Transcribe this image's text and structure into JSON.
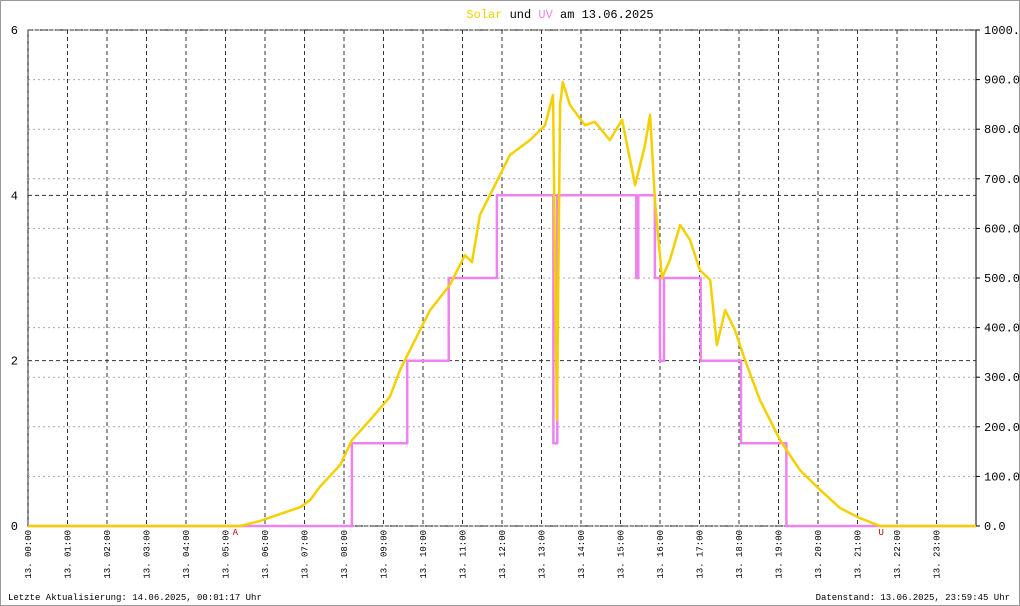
{
  "chart_data": {
    "type": "line",
    "title_connector": "und",
    "title_suffix": "am 13.06.2025",
    "xlim": [
      0,
      24
    ],
    "ylim": [
      0,
      6
    ],
    "y2lim": [
      0,
      1000
    ],
    "xticks": [
      {
        "value": 0,
        "label": "13. 00:00"
      },
      {
        "value": 1,
        "label": "13. 01:00"
      },
      {
        "value": 2,
        "label": "13. 02:00"
      },
      {
        "value": 3,
        "label": "13. 03:00"
      },
      {
        "value": 4,
        "label": "13. 04:00"
      },
      {
        "value": 5,
        "label": "13. 05:00"
      },
      {
        "value": 6,
        "label": "13. 06:00"
      },
      {
        "value": 7,
        "label": "13. 07:00"
      },
      {
        "value": 8,
        "label": "13. 08:00"
      },
      {
        "value": 9,
        "label": "13. 09:00"
      },
      {
        "value": 10,
        "label": "13. 10:00"
      },
      {
        "value": 11,
        "label": "13. 11:00"
      },
      {
        "value": 12,
        "label": "13. 12:00"
      },
      {
        "value": 13,
        "label": "13. 13:00"
      },
      {
        "value": 14,
        "label": "13. 14:00"
      },
      {
        "value": 15,
        "label": "13. 15:00"
      },
      {
        "value": 16,
        "label": "13. 16:00"
      },
      {
        "value": 17,
        "label": "13. 17:00"
      },
      {
        "value": 18,
        "label": "13. 18:00"
      },
      {
        "value": 19,
        "label": "13. 19:00"
      },
      {
        "value": 20,
        "label": "13. 20:00"
      },
      {
        "value": 21,
        "label": "13. 21:00"
      },
      {
        "value": 22,
        "label": "13. 22:00"
      },
      {
        "value": 23,
        "label": "13. 23:00"
      }
    ],
    "yticks": [
      0,
      2,
      4,
      6
    ],
    "y2ticks": [
      {
        "value": 0,
        "label": "0.0"
      },
      {
        "value": 100,
        "label": "100.0"
      },
      {
        "value": 200,
        "label": "200.0"
      },
      {
        "value": 300,
        "label": "300.0"
      },
      {
        "value": 400,
        "label": "400.0"
      },
      {
        "value": 500,
        "label": "500.0"
      },
      {
        "value": 600,
        "label": "600.0"
      },
      {
        "value": 700,
        "label": "700.0"
      },
      {
        "value": 800,
        "label": "800.0"
      },
      {
        "value": 900,
        "label": "900.0"
      },
      {
        "value": 1000,
        "label": "1000.0"
      }
    ],
    "grid": true,
    "series": [
      {
        "name": "Solar",
        "color": "#f5d000",
        "axis": "y2",
        "x": [
          0,
          5.37,
          5.87,
          6.38,
          6.89,
          7.14,
          7.39,
          7.9,
          8.2,
          8.66,
          9.16,
          9.42,
          9.67,
          10.18,
          10.68,
          11.06,
          11.24,
          11.44,
          11.82,
          12.2,
          12.71,
          13.09,
          13.29,
          13.39,
          13.47,
          13.54,
          13.72,
          14.1,
          14.35,
          14.73,
          15.04,
          15.37,
          15.62,
          15.75,
          15.87,
          16.05,
          16.25,
          16.51,
          16.76,
          17.01,
          17.27,
          17.44,
          17.65,
          17.9,
          18.15,
          18.53,
          19.04,
          19.54,
          20.05,
          20.56,
          21.06,
          21.44,
          21.57,
          24
        ],
        "values": [
          0,
          0,
          10,
          24,
          38,
          52,
          79,
          123,
          173,
          214,
          260,
          315,
          355,
          435,
          486,
          546,
          532,
          627,
          687,
          748,
          778,
          808,
          869,
          214,
          849,
          895,
          849,
          808,
          815,
          778,
          819,
          687,
          768,
          829,
          657,
          500,
          536,
          607,
          577,
          516,
          496,
          365,
          435,
          395,
          335,
          254,
          173,
          113,
          73,
          36,
          16,
          4,
          0,
          0
        ]
      },
      {
        "name": "UV",
        "color": "#ee82ee",
        "x": [
          0,
          8.2,
          8.2,
          9.6,
          9.6,
          10.65,
          10.65,
          11.87,
          11.87,
          13.3,
          13.3,
          13.4,
          13.4,
          15.4,
          15.4,
          15.45,
          15.45,
          15.87,
          15.87,
          16.0,
          16.0,
          16.1,
          16.1,
          17.03,
          17.03,
          18.05,
          18.05,
          19.2,
          19.2,
          24
        ],
        "values": [
          0,
          0,
          1,
          1,
          2,
          2,
          3,
          3,
          4,
          4,
          1,
          1,
          4,
          4,
          3,
          3,
          4,
          4,
          3,
          3,
          2,
          2,
          3,
          3,
          2,
          2,
          1,
          1,
          0,
          0
        ]
      }
    ],
    "annotations": [
      {
        "text": "A",
        "x": 5.25
      },
      {
        "text": "U",
        "x": 21.6
      }
    ],
    "footer_left": "Letzte Aktualisierung: 14.06.2025, 00:01:17 Uhr",
    "footer_right": "Datenstand: 13.06.2025, 23:59:45 Uhr"
  }
}
